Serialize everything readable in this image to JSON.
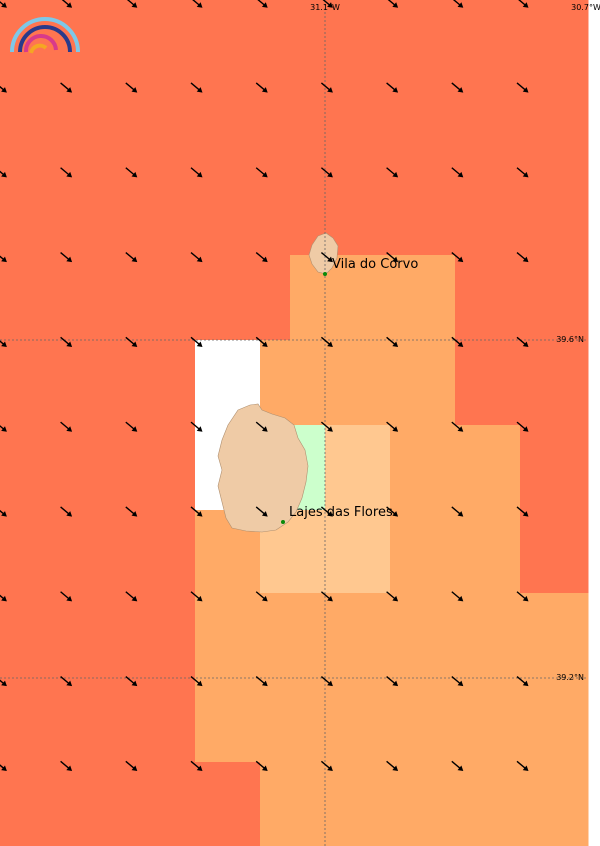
{
  "map": {
    "lon_labels": [
      "31.1°W",
      "30.7°W"
    ],
    "lat_labels": [
      "39.6°N",
      "39.2°N"
    ],
    "places": [
      "Vila do Corvo",
      "Lajes das Flores"
    ]
  }
}
